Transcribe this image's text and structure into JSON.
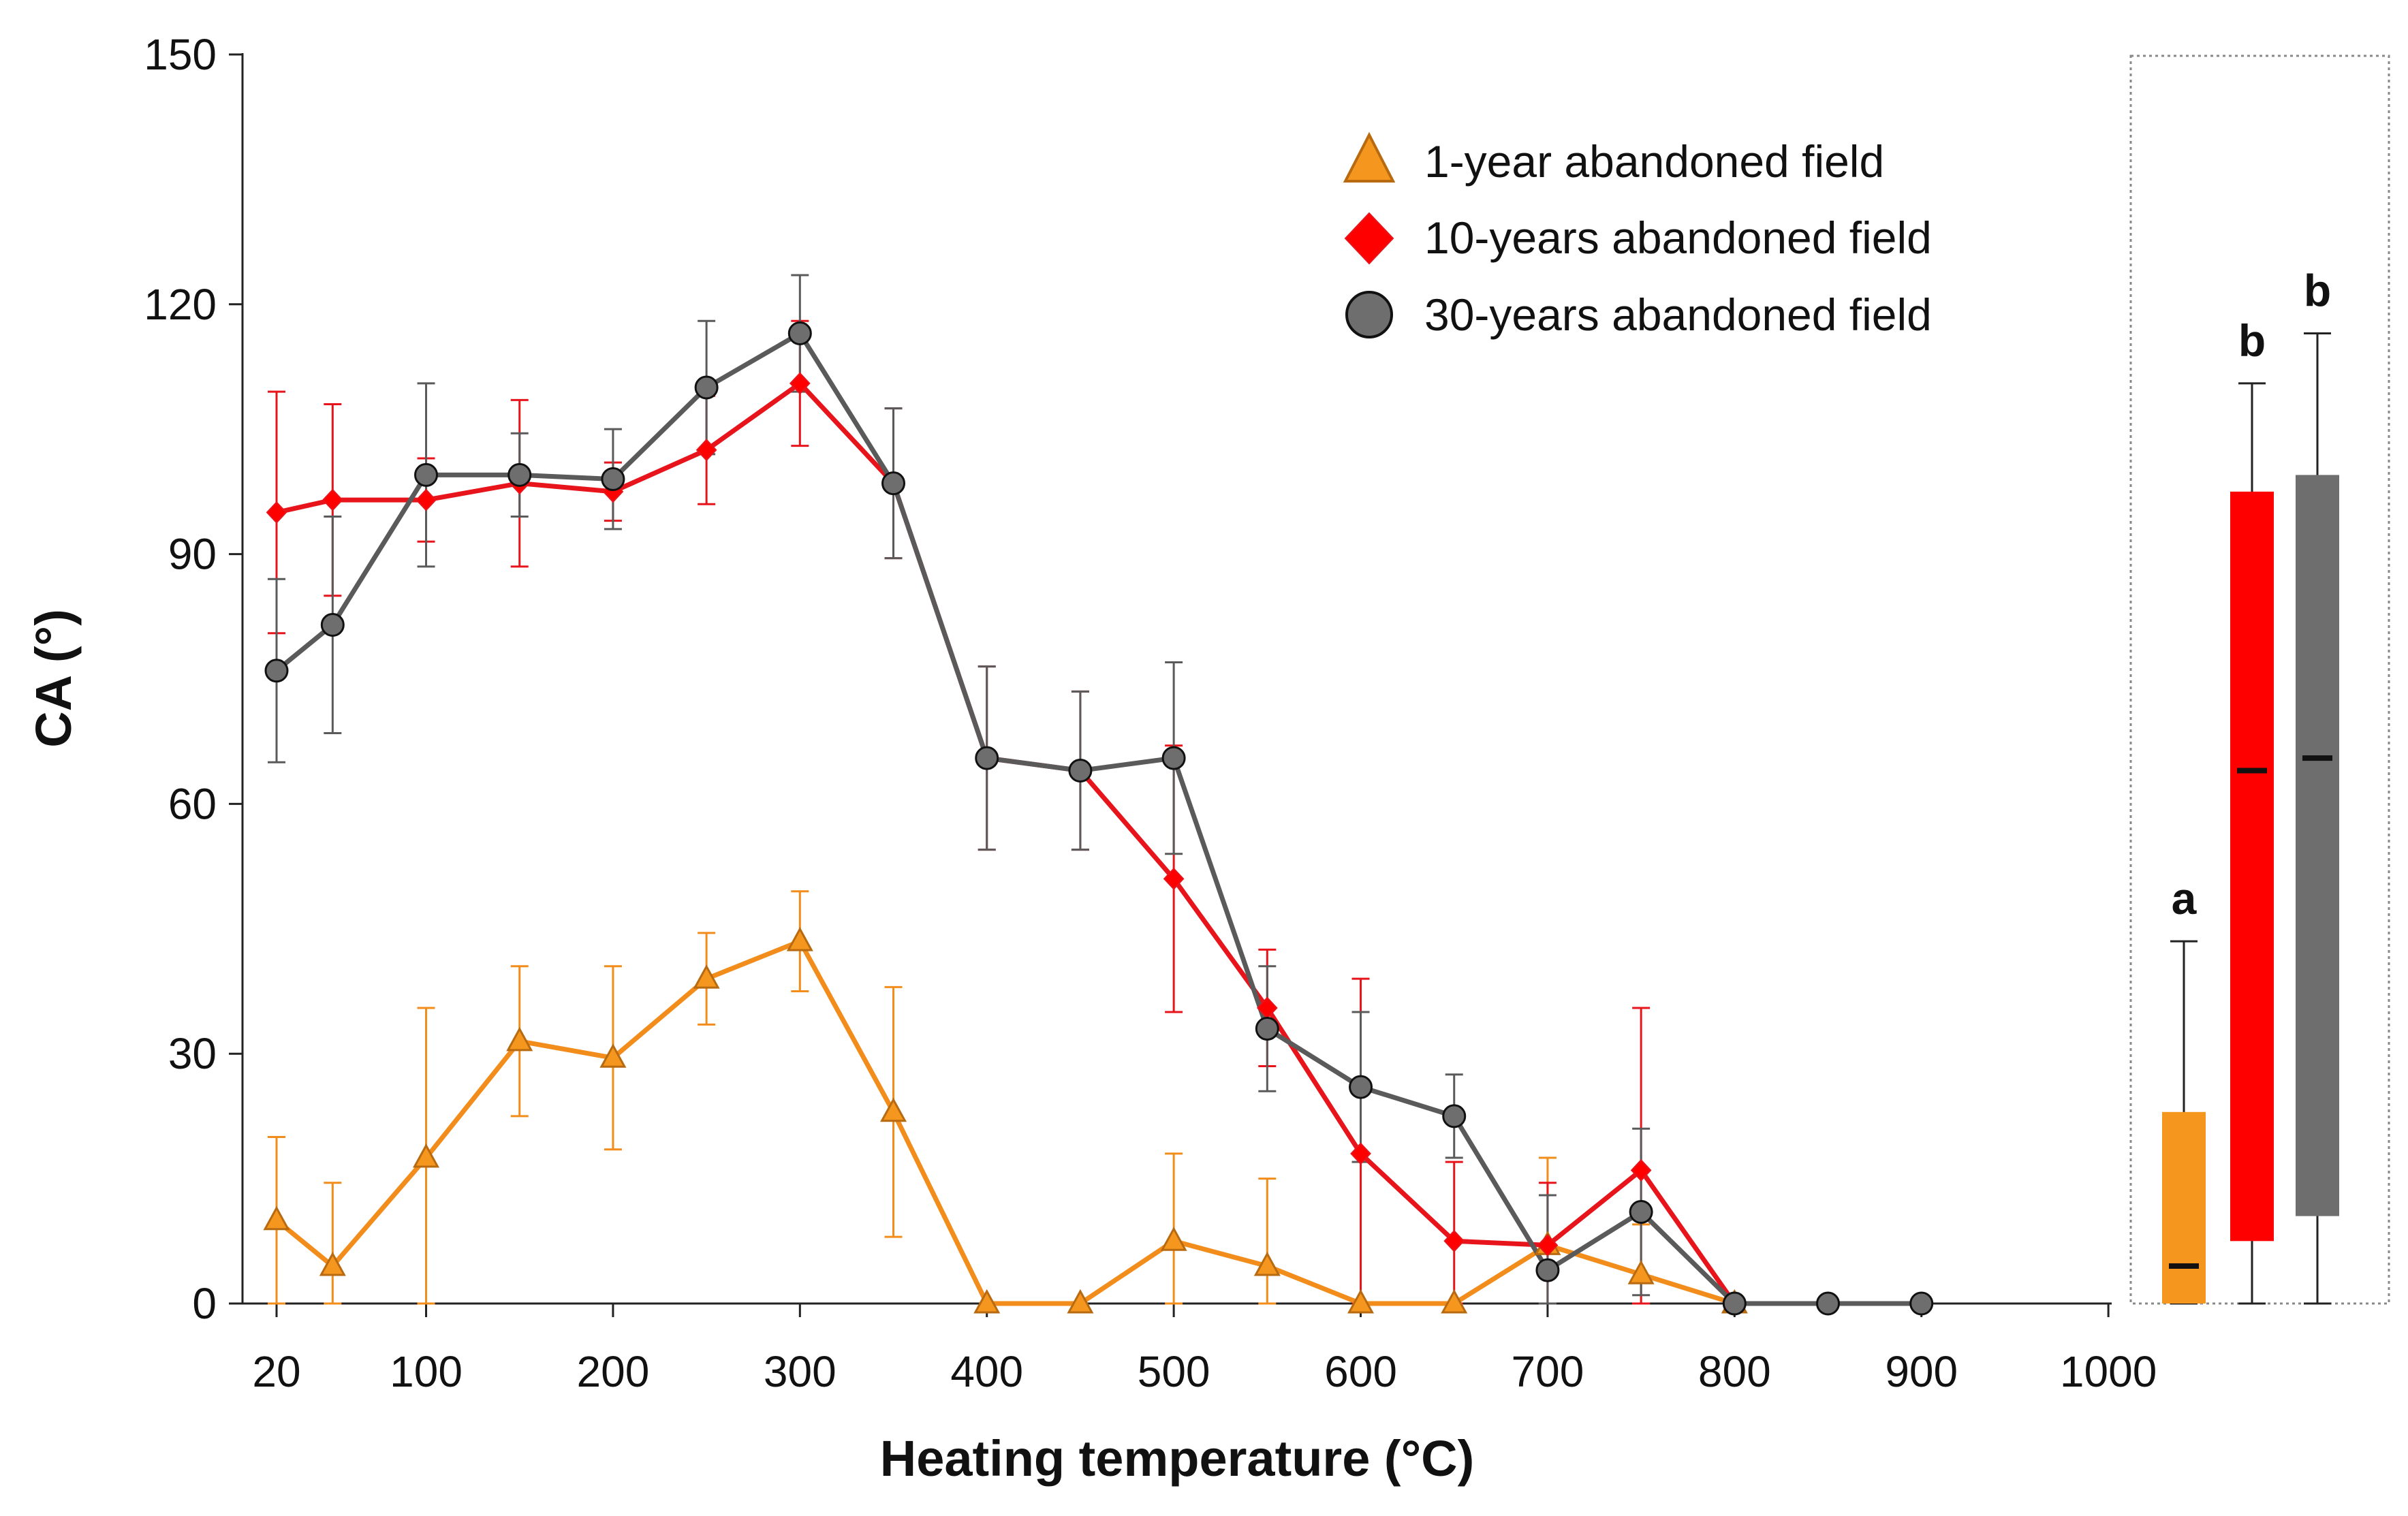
{
  "chart_data": [
    {
      "type": "line",
      "title": "",
      "xlabel": "Heating temperature (°C)",
      "ylabel": "CA (°)",
      "xlim": [
        0,
        1000
      ],
      "ylim": [
        0,
        150
      ],
      "x_ticks": [
        20,
        100,
        200,
        300,
        400,
        500,
        600,
        700,
        800,
        900,
        1000
      ],
      "y_ticks": [
        0,
        30,
        60,
        90,
        120,
        150
      ],
      "grid": false,
      "legend_position": "top-right",
      "x": [
        20,
        50,
        100,
        150,
        200,
        250,
        300,
        350,
        400,
        450,
        500,
        550,
        600,
        650,
        700,
        750,
        800,
        850,
        900
      ],
      "series": [
        {
          "name": "1-year abandoned field",
          "marker": "triangle",
          "color": "#F28C1B",
          "marker_fill": "#F5961E",
          "values": [
            10,
            4.5,
            17.5,
            31.5,
            29.5,
            39,
            43.5,
            23,
            0,
            0,
            7.5,
            4.5,
            0,
            0,
            7,
            3.5,
            0,
            null,
            null
          ],
          "errors": [
            10,
            10,
            18,
            9,
            11,
            5.5,
            6,
            15,
            0,
            0,
            10.5,
            10.5,
            0,
            0,
            10.5,
            6,
            0,
            null,
            null
          ]
        },
        {
          "name": "10-years abandoned field",
          "marker": "diamond",
          "color": "#E8141B",
          "marker_fill": "#FF0000",
          "values": [
            95,
            96.5,
            96.5,
            98.5,
            97.5,
            102.5,
            110.5,
            98.5,
            65.5,
            64,
            51,
            35.5,
            18,
            7.5,
            7,
            16,
            0,
            null,
            null
          ],
          "errors": [
            14.5,
            11.5,
            5,
            10,
            3.5,
            6.5,
            7.5,
            9,
            11,
            9.5,
            16,
            7,
            21,
            9.5,
            7.5,
            19.5,
            0,
            null,
            null
          ]
        },
        {
          "name": "30-years abandoned field",
          "marker": "circle",
          "color": "#5A5A5A",
          "marker_fill": "#6E6E6E",
          "values": [
            76,
            81.5,
            99.5,
            99.5,
            99,
            110,
            116.5,
            98.5,
            65.5,
            64,
            65.5,
            33,
            26,
            22.5,
            4,
            11,
            0,
            0,
            0
          ],
          "errors": [
            11,
            13,
            11,
            5,
            6,
            8,
            7,
            9,
            11,
            9.5,
            11.5,
            7.5,
            9,
            5,
            9,
            10,
            0,
            0,
            0
          ]
        }
      ],
      "legend": {
        "items": [
          {
            "label": "1-year abandoned field"
          },
          {
            "label": "10-years abandoned field"
          },
          {
            "label": "30-years abandoned field"
          }
        ]
      }
    },
    {
      "type": "box",
      "title": "",
      "ylim": [
        0,
        150
      ],
      "boxes": [
        {
          "name": "1-year abandoned field",
          "color": "#F5961E",
          "min": 0,
          "q1": 0,
          "median": 4.5,
          "q3": 23,
          "max": 43.5,
          "significance": "a"
        },
        {
          "name": "10-years abandoned field",
          "color": "#FF0000",
          "min": 0,
          "q1": 7.5,
          "median": 64,
          "q3": 97.5,
          "max": 110.5,
          "significance": "b"
        },
        {
          "name": "30-years abandoned field",
          "color": "#6E6E6E",
          "min": 0,
          "q1": 10.5,
          "median": 65.5,
          "q3": 99.5,
          "max": 116.5,
          "significance": "b"
        }
      ]
    }
  ]
}
